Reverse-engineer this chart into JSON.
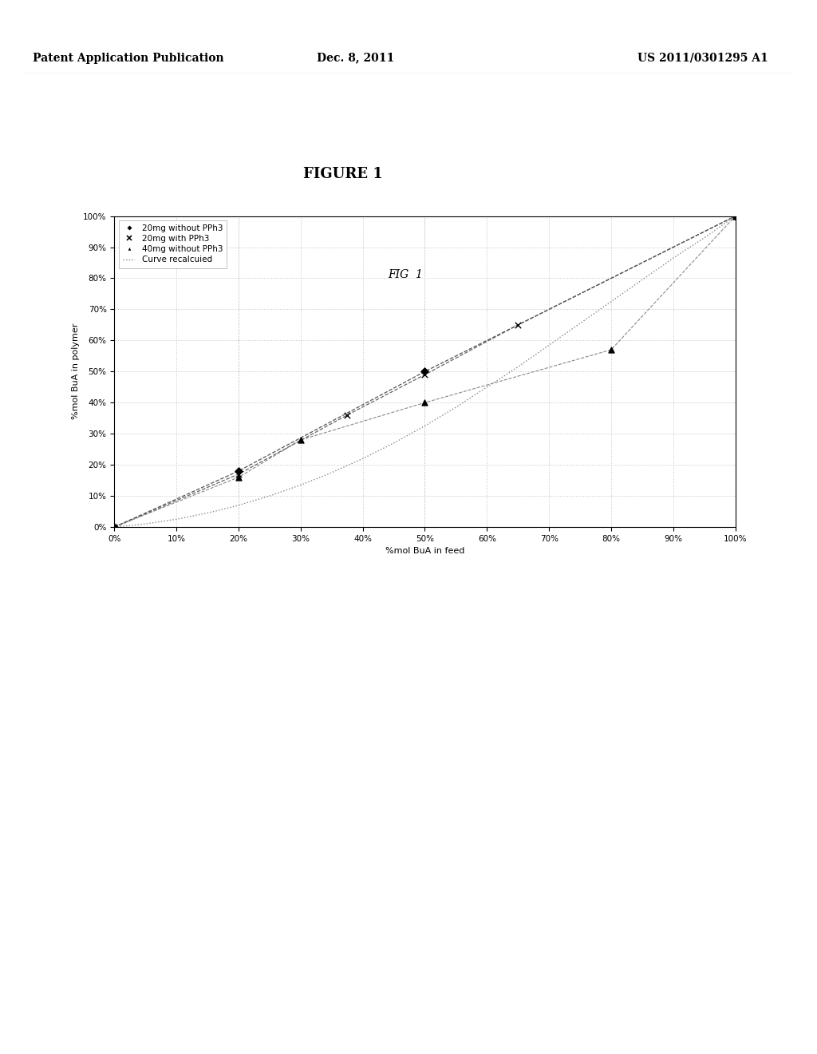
{
  "header_left": "Patent Application Publication",
  "header_center": "Dec. 8, 2011",
  "header_right": "US 2011/0301295 A1",
  "figure_title": "FIGURE 1",
  "fig_label": "FIG  1",
  "xlabel": "%mol BuA in feed",
  "ylabel": "%mol BuA in polymer",
  "series1_label": "20mg without PPh3",
  "series2_label": "20mg with PPh3",
  "series3_label": "40mg without PPh3",
  "curve_label": "Curve recalcuied",
  "series1_x": [
    0,
    0.2,
    0.5,
    1.0
  ],
  "series1_y": [
    0,
    0.18,
    0.5,
    1.0
  ],
  "series2_x": [
    0,
    0.2,
    0.375,
    0.5,
    0.65,
    1.0
  ],
  "series2_y": [
    0,
    0.17,
    0.36,
    0.49,
    0.65,
    1.0
  ],
  "series3_x": [
    0,
    0.2,
    0.3,
    0.5,
    0.8,
    1.0
  ],
  "series3_y": [
    0,
    0.16,
    0.28,
    0.4,
    0.57,
    1.0
  ],
  "curve_x": [
    0,
    0.05,
    0.1,
    0.15,
    0.2,
    0.25,
    0.3,
    0.35,
    0.4,
    0.45,
    0.5,
    0.55,
    0.6,
    0.65,
    0.7,
    0.75,
    0.8,
    0.85,
    0.9,
    0.95,
    1.0
  ],
  "curve_y": [
    0,
    0.01,
    0.025,
    0.045,
    0.07,
    0.1,
    0.135,
    0.175,
    0.22,
    0.27,
    0.325,
    0.385,
    0.45,
    0.515,
    0.585,
    0.655,
    0.725,
    0.795,
    0.865,
    0.93,
    1.0
  ],
  "grid_color": "#bbbbbb",
  "background_color": "#ffffff",
  "plot_bg_color": "#ffffff",
  "header_fontsize": 10,
  "title_fontsize": 13,
  "axis_label_fontsize": 8,
  "tick_fontsize": 7.5,
  "legend_fontsize": 7.5
}
